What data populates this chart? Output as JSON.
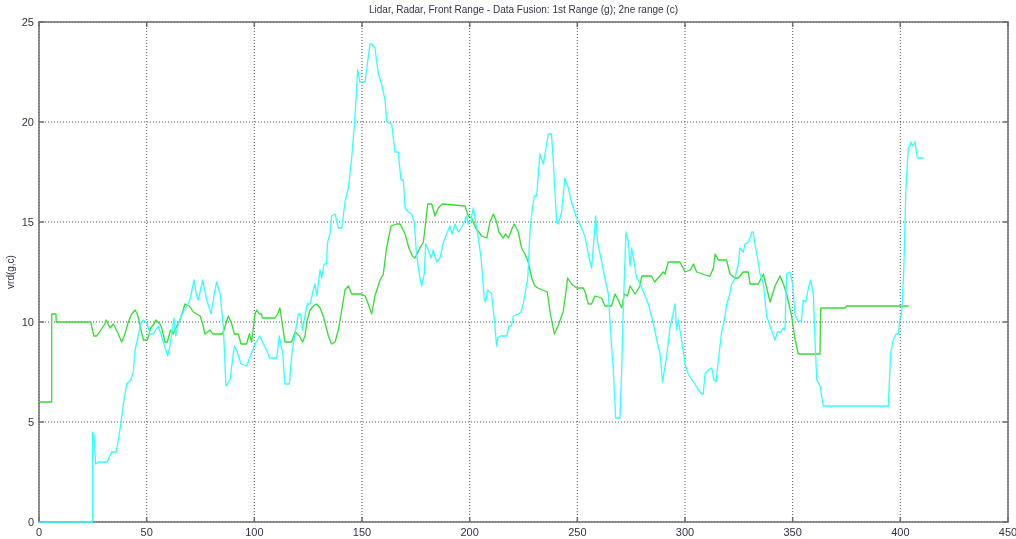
{
  "chart_data": {
    "type": "line",
    "title": "Lidar, Radar, Front Range - Data Fusion: 1st Range (g); 2ne range (c)",
    "ylabel": "vrd(g,c)",
    "xlim": [
      0,
      450
    ],
    "ylim": [
      0,
      25
    ],
    "xticks": [
      0,
      50,
      100,
      150,
      200,
      250,
      300,
      350,
      400,
      450
    ],
    "yticks": [
      0,
      5,
      10,
      15,
      20,
      25
    ],
    "grid": true,
    "line_style": "solid",
    "series": [
      {
        "color": "#33dd33",
        "x": [
          0,
          5.9,
          5.9,
          7.9,
          8.0,
          24.0,
          25.5,
          26.8,
          30.6,
          31.1,
          33.0,
          34.5,
          36.4,
          38.4,
          39.6,
          41.5,
          43.0,
          44.6,
          45.7,
          47.4,
          48.5,
          50.3,
          51.9,
          53.4,
          54.2,
          56.2,
          57.0,
          58.5,
          59.6,
          61.1,
          62.4,
          63.9,
          65.5,
          66.7,
          67.8,
          69.8,
          71.7,
          74.8,
          76.0,
          77.1,
          79.4,
          80.7,
          85.3,
          87.9,
          89.5,
          90.7,
          92.6,
          93.8,
          96.4,
          97.7,
          98.8,
          100.3,
          101.1,
          102.3,
          103.4,
          103.7,
          109.6,
          110.8,
          111.9,
          112.7,
          114.2,
          117.3,
          118.9,
          120.9,
          122.4,
          123.5,
          124.6,
          125.9,
          127.4,
          128.9,
          130.5,
          132.0,
          134.4,
          135.9,
          137.5,
          139.0,
          140.6,
          142.1,
          143.7,
          145.2,
          149.8,
          151.4,
          152.9,
          154.5,
          156.0,
          158.4,
          159.9,
          161.4,
          163.5,
          166.0,
          167.7,
          170.0,
          171.8,
          173.4,
          174.6,
          176.9,
          178.5,
          179.6,
          180.5,
          182.4,
          183.9,
          185.4,
          187.3,
          197.8,
          199.4,
          200.9,
          202.8,
          205.6,
          208.0,
          209.4,
          211.0,
          212.5,
          213.6,
          215.6,
          216.7,
          218.0,
          219.8,
          220.7,
          222.6,
          224.1,
          225.7,
          227.2,
          228.8,
          230.3,
          231.7,
          236.0,
          237.5,
          239.3,
          241.0,
          243.4,
          244.2,
          245.5,
          247.3,
          249.7,
          252.8,
          253.6,
          255.1,
          256.6,
          258.2,
          261.3,
          262.8,
          265.9,
          267.5,
          269.0,
          270.6,
          271.8,
          273.3,
          274.5,
          276.8,
          279.1,
          279.9,
          284.4,
          285.9,
          288.3,
          289.9,
          290.7,
          292.2,
          297.7,
          300.0,
          302.5,
          303.9,
          305.4,
          310.8,
          311.6,
          313.2,
          314.0,
          315.5,
          319.3,
          320.9,
          323.2,
          324.7,
          327.0,
          329.4,
          330.2,
          334.0,
          336.4,
          339.5,
          341.8,
          344.1,
          345.7,
          347.2,
          349.5,
          351.0,
          352.6,
          362.7,
          363.0,
          374.3,
          375.1,
          403.7
        ],
        "values": [
          6.0,
          6.0,
          10.4,
          10.4,
          10.0,
          10.0,
          9.3,
          9.3,
          9.9,
          10.1,
          9.7,
          9.9,
          9.5,
          9.0,
          9.3,
          10.0,
          10.4,
          10.6,
          10.4,
          9.6,
          9.1,
          9.1,
          9.7,
          9.9,
          10.1,
          9.9,
          9.7,
          9.0,
          9.0,
          9.6,
          9.4,
          9.8,
          10.1,
          10.5,
          10.9,
          10.8,
          10.5,
          10.3,
          9.9,
          9.4,
          9.6,
          9.4,
          9.4,
          10.3,
          9.9,
          9.4,
          9.4,
          8.9,
          8.9,
          9.4,
          9.0,
          10.4,
          10.6,
          10.4,
          10.4,
          10.2,
          10.2,
          10.4,
          10.7,
          10.1,
          9.0,
          9.0,
          9.5,
          9.3,
          9.0,
          9.3,
          10.1,
          10.6,
          10.8,
          10.9,
          10.7,
          10.3,
          9.3,
          8.9,
          9.0,
          9.6,
          10.6,
          11.6,
          11.8,
          11.4,
          11.4,
          11.3,
          10.9,
          10.4,
          11.3,
          12.1,
          12.4,
          13.7,
          14.8,
          14.9,
          14.9,
          14.4,
          13.7,
          13.3,
          13.2,
          13.7,
          14.0,
          15.0,
          15.9,
          15.9,
          15.3,
          15.7,
          15.9,
          15.8,
          15.3,
          15.2,
          14.7,
          14.3,
          14.2,
          15.0,
          15.4,
          15.0,
          14.5,
          14.2,
          14.4,
          14.2,
          14.7,
          14.9,
          14.5,
          13.7,
          13.4,
          13.0,
          12.2,
          11.8,
          11.7,
          11.5,
          10.4,
          9.4,
          9.8,
          10.5,
          11.1,
          12.2,
          11.9,
          11.7,
          11.7,
          11.5,
          10.9,
          10.9,
          11.3,
          11.2,
          10.8,
          10.8,
          11.4,
          11.1,
          10.7,
          11.4,
          11.3,
          11.8,
          11.4,
          11.8,
          12.3,
          12.3,
          12.0,
          12.3,
          12.5,
          12.4,
          13.0,
          13.0,
          12.5,
          12.6,
          12.9,
          12.5,
          12.3,
          12.3,
          12.7,
          13.4,
          13.1,
          13.1,
          12.4,
          12.2,
          12.2,
          12.5,
          12.5,
          11.9,
          11.9,
          12.4,
          11.0,
          11.8,
          12.3,
          11.9,
          11.4,
          10.3,
          9.2,
          8.4,
          8.4,
          10.7,
          10.7,
          10.8,
          10.8
        ]
      },
      {
        "color": "#33ffff",
        "x": [
          0,
          24.9,
          24.9,
          25.5,
          26.3,
          27.6,
          31.4,
          32.2,
          33.7,
          35.8,
          36.8,
          37.9,
          39.2,
          40.7,
          42.6,
          43.8,
          44.6,
          46.1,
          47.2,
          48.5,
          50.3,
          51.5,
          53.0,
          55.4,
          57.7,
          59.8,
          60.8,
          61.9,
          62.7,
          63.5,
          64.7,
          66.3,
          68.6,
          70.1,
          72.0,
          73.0,
          74.0,
          76.0,
          77.9,
          79.9,
          81.4,
          82.5,
          84.1,
          85.6,
          86.8,
          88.7,
          90.7,
          91.8,
          93.8,
          96.4,
          98.5,
          100.3,
          102.6,
          104.2,
          105.7,
          107.0,
          110.4,
          111.6,
          113.2,
          114.2,
          116.3,
          117.3,
          118.1,
          119.2,
          120.4,
          121.5,
          122.4,
          123.5,
          124.6,
          125.9,
          127.4,
          128.2,
          129.0,
          130.5,
          131.3,
          132.4,
          133.5,
          134.0,
          135.1,
          135.9,
          137.5,
          139.0,
          140.6,
          142.1,
          143.7,
          145.2,
          146.7,
          148.0,
          149.0,
          151.4,
          153.7,
          154.5,
          156.0,
          157.6,
          159.1,
          160.7,
          161.5,
          163.8,
          165.3,
          166.8,
          168.1,
          169.2,
          170.0,
          171.5,
          173.0,
          174.3,
          175.3,
          176.9,
          177.7,
          178.9,
          179.6,
          180.8,
          182.1,
          183.1,
          184.6,
          186.2,
          187.8,
          188.9,
          190.8,
          191.9,
          193.2,
          194.7,
          196.0,
          197.1,
          198.6,
          199.4,
          200.6,
          201.7,
          202.8,
          203.7,
          205.3,
          206.8,
          207.4,
          208.3,
          210.2,
          211.5,
          212.5,
          213.0,
          214.1,
          217.2,
          218.3,
          219.4,
          220.3,
          222.6,
          223.8,
          224.9,
          226.0,
          227.0,
          228.0,
          228.8,
          230.0,
          231.1,
          231.9,
          232.6,
          234.2,
          235.0,
          236.5,
          238.0,
          238.8,
          239.6,
          240.4,
          241.2,
          242.7,
          244.2,
          245.8,
          247.3,
          249.6,
          251.2,
          253.5,
          255.1,
          256.6,
          257.4,
          258.5,
          259.4,
          261.3,
          262.8,
          264.4,
          265.9,
          266.7,
          267.8,
          269.8,
          270.6,
          271.4,
          272.6,
          273.7,
          274.5,
          275.2,
          276.4,
          277.5,
          278.3,
          279.9,
          283.0,
          285.3,
          286.9,
          288.4,
          289.6,
          291.5,
          293.0,
          294.6,
          295.4,
          296.1,
          296.9,
          298.4,
          300.0,
          301.5,
          304.6,
          306.2,
          307.7,
          308.5,
          309.3,
          310.8,
          312.4,
          313.5,
          314.4,
          315.5,
          317.0,
          318.3,
          319.4,
          320.6,
          321.7,
          323.2,
          324.8,
          325.5,
          327.1,
          327.9,
          329.4,
          330.2,
          331.0,
          331.7,
          332.5,
          334.0,
          334.8,
          336.4,
          337.9,
          339.8,
          341.8,
          342.9,
          344.5,
          345.7,
          346.4,
          347.2,
          348.7,
          350.0,
          351.0,
          352.6,
          354.1,
          354.9,
          356.1,
          357.3,
          358.3,
          359.6,
          360.4,
          361.2,
          362.7,
          364.2,
          394.4,
          395.5,
          396.7,
          398.0,
          399.0,
          399.8,
          400.6,
          401.6,
          402.6,
          403.7,
          404.5,
          404.9,
          405.7,
          406.8,
          407.9,
          410.6
        ],
        "values": [
          0,
          0,
          4.5,
          4.4,
          2.9,
          3.0,
          3.0,
          3.1,
          3.5,
          3.5,
          4.1,
          4.8,
          5.9,
          6.9,
          7.1,
          7.5,
          8.6,
          9.3,
          9.9,
          10.1,
          9.9,
          9.4,
          9.4,
          9.8,
          9.0,
          8.3,
          8.8,
          9.6,
          10.2,
          9.3,
          9.9,
          10.4,
          10.8,
          11.1,
          12.1,
          11.4,
          11.1,
          12.1,
          11.1,
          10.4,
          11.4,
          12.0,
          11.4,
          9.8,
          6.8,
          7.1,
          8.8,
          8.6,
          7.9,
          7.8,
          8.4,
          8.9,
          9.3,
          8.9,
          8.6,
          8.2,
          8.2,
          9.3,
          8.4,
          6.9,
          6.9,
          8.3,
          8.9,
          9.6,
          10.4,
          10.4,
          9.6,
          10.3,
          10.9,
          10.9,
          11.6,
          11.9,
          11.3,
          12.6,
          12.2,
          12.9,
          12.9,
          14.0,
          14.4,
          15.3,
          15.4,
          14.7,
          14.7,
          16.0,
          16.7,
          18.2,
          20.2,
          22.6,
          22.0,
          22.0,
          23.9,
          23.9,
          23.7,
          22.4,
          21.9,
          21.1,
          20.0,
          19.9,
          18.5,
          18.5,
          17.1,
          17.1,
          15.7,
          15.5,
          15.4,
          15.0,
          13.4,
          12.2,
          11.8,
          12.4,
          13.9,
          13.6,
          13.2,
          13.6,
          13.0,
          13.2,
          14.0,
          14.3,
          14.8,
          14.4,
          14.9,
          14.5,
          14.7,
          14.9,
          15.3,
          14.9,
          15.1,
          15.7,
          15.0,
          14.4,
          13.2,
          11.1,
          11.0,
          11.6,
          11.4,
          10.1,
          8.8,
          9.2,
          9.3,
          9.3,
          9.8,
          9.8,
          10.3,
          10.4,
          10.5,
          10.9,
          11.6,
          12.2,
          14.5,
          15.4,
          16.3,
          16.3,
          17.4,
          18.4,
          17.9,
          18.4,
          19.4,
          19.4,
          18.1,
          16.5,
          15.0,
          14.9,
          15.5,
          17.2,
          16.7,
          16.0,
          15.2,
          14.9,
          14.3,
          13.4,
          12.7,
          13.7,
          15.3,
          14.0,
          13.0,
          12.2,
          11.4,
          8.8,
          7.6,
          5.2,
          5.2,
          7.6,
          10.9,
          14.5,
          14.0,
          12.8,
          13.7,
          13.0,
          12.2,
          12.1,
          11.7,
          10.9,
          9.9,
          9.1,
          8.4,
          7.0,
          8.3,
          9.7,
          10.5,
          10.9,
          9.6,
          10.1,
          9.1,
          7.9,
          7.4,
          6.9,
          6.6,
          6.4,
          6.4,
          7.4,
          7.6,
          7.7,
          7.1,
          7.0,
          8.1,
          9.5,
          10.1,
          10.9,
          11.3,
          11.9,
          12.2,
          12.9,
          13.7,
          13.5,
          13.9,
          14.0,
          14.2,
          14.5,
          14.5,
          13.9,
          13.0,
          12.4,
          11.9,
          10.3,
          9.7,
          9.1,
          9.5,
          9.5,
          9.7,
          9.6,
          12.4,
          12.5,
          11.9,
          10.4,
          10.0,
          10.1,
          11.1,
          11.0,
          11.7,
          12.1,
          11.4,
          9.0,
          7.1,
          6.8,
          5.8,
          5.8,
          8.4,
          9.1,
          9.4,
          9.4,
          10.1,
          10.4,
          12.6,
          16.7,
          18.7,
          18.8,
          19.0,
          18.8,
          19.0,
          18.2,
          18.2
        ]
      }
    ]
  }
}
